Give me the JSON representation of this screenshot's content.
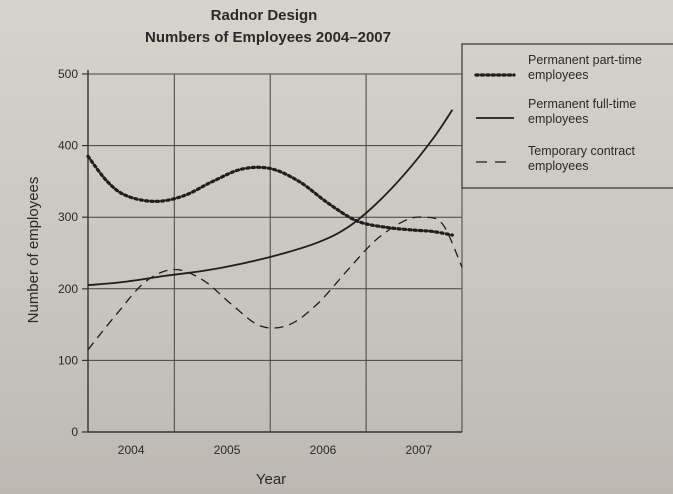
{
  "chart_data": {
    "type": "line",
    "title": "Radnor Design",
    "subtitle": "Numbers of Employees 2004–2007",
    "xlabel": "Year",
    "ylabel": "Number of employees",
    "x_ticks": [
      "2004",
      "2005",
      "2006",
      "2007"
    ],
    "y_ticks": [
      "0",
      "100",
      "200",
      "300",
      "400",
      "500"
    ],
    "xlim": [
      2003.6,
      2007.5
    ],
    "ylim": [
      0,
      500
    ],
    "grid": true,
    "legend_position": "right",
    "series": [
      {
        "name": "Permanent part-time employees",
        "line_style": "dotted",
        "x": [
          2003.6,
          2003.8,
          2004.0,
          2004.3,
          2004.6,
          2004.9,
          2005.2,
          2005.5,
          2005.8,
          2006.1,
          2006.4,
          2006.7,
          2007.0,
          2007.2,
          2007.4
        ],
        "y": [
          385,
          350,
          330,
          322,
          330,
          350,
          367,
          368,
          350,
          320,
          295,
          286,
          282,
          280,
          275
        ]
      },
      {
        "name": "Permanent full-time employees",
        "line_style": "solid",
        "x": [
          2003.6,
          2004.0,
          2004.4,
          2004.8,
          2005.2,
          2005.6,
          2006.0,
          2006.3,
          2006.6,
          2006.9,
          2007.2,
          2007.4
        ],
        "y": [
          205,
          210,
          218,
          225,
          235,
          248,
          265,
          285,
          318,
          360,
          410,
          450
        ]
      },
      {
        "name": "Temporary contract employees",
        "line_style": "dashed",
        "x": [
          2003.6,
          2003.9,
          2004.2,
          2004.5,
          2004.8,
          2005.1,
          2005.4,
          2005.7,
          2006.0,
          2006.3,
          2006.6,
          2006.9,
          2007.1,
          2007.3,
          2007.5
        ],
        "y": [
          115,
          165,
          210,
          227,
          212,
          178,
          148,
          150,
          180,
          225,
          268,
          295,
          300,
          290,
          230
        ]
      }
    ]
  }
}
